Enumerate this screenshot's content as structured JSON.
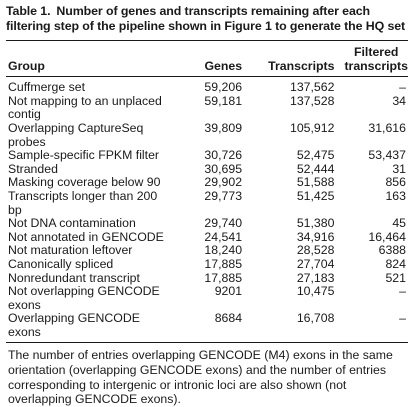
{
  "table": {
    "number": "Table 1.",
    "title": "Number of genes and transcripts remaining after each filtering step of the pipeline shown in Figure 1 to generate the HQ set",
    "headers": {
      "group": "Group",
      "genes": "Genes",
      "transcripts": "Transcripts",
      "filtered_line1": "Filtered",
      "filtered_line2": "transcripts"
    },
    "rows": [
      {
        "group": "Cuffmerge set",
        "genes": "59,206",
        "transcripts": "137,562",
        "filtered": "–"
      },
      {
        "group": "Not mapping to an unplaced contig",
        "genes": "59,181",
        "transcripts": "137,528",
        "filtered": "34"
      },
      {
        "group": "Overlapping CaptureSeq probes",
        "genes": "39,809",
        "transcripts": "105,912",
        "filtered": "31,616"
      },
      {
        "group": "Sample-specific FPKM filter",
        "genes": "30,726",
        "transcripts": "52,475",
        "filtered": "53,437"
      },
      {
        "group": "Stranded",
        "genes": "30,695",
        "transcripts": "52,444",
        "filtered": "31"
      },
      {
        "group": "Masking coverage below 90",
        "genes": "29,902",
        "transcripts": "51,588",
        "filtered": "856"
      },
      {
        "group": "Transcripts longer than 200 bp",
        "genes": "29,773",
        "transcripts": "51,425",
        "filtered": "163"
      },
      {
        "group": "Not DNA contamination",
        "genes": "29,740",
        "transcripts": "51,380",
        "filtered": "45"
      },
      {
        "group": "Not annotated in GENCODE",
        "genes": "24,541",
        "transcripts": "34,916",
        "filtered": "16,464"
      },
      {
        "group": "Not maturation leftover",
        "genes": "18,240",
        "transcripts": "28,528",
        "filtered": "6388"
      },
      {
        "group": "Canonically spliced",
        "genes": "17,885",
        "transcripts": "27,704",
        "filtered": "824"
      },
      {
        "group": "Nonredundant transcript",
        "genes": "17,885",
        "transcripts": "27,183",
        "filtered": "521"
      },
      {
        "group": "Not overlapping GENCODE exons",
        "genes": "9201",
        "transcripts": "10,475",
        "filtered": "–"
      },
      {
        "group": "Overlapping GENCODE exons",
        "genes": "8684",
        "transcripts": "16,708",
        "filtered": "–"
      }
    ],
    "footnote": "The number of entries overlapping GENCODE (M4) exons in the same orientation (overlapping GENCODE exons) and the number of entries corresponding to intergenic or intronic loci are also shown (not overlapping GENCODE exons)."
  }
}
